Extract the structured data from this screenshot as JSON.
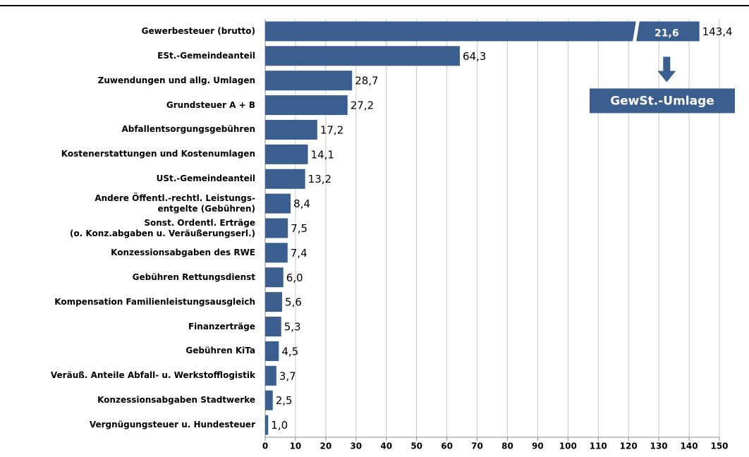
{
  "chart_data": {
    "type": "bar",
    "orientation": "horizontal",
    "categories": [
      "Gewerbesteuer (brutto)",
      "ESt.-Gemeindeanteil",
      "Zuwendungen und allg. Umlagen",
      "Grundsteuer A + B",
      "Abfallentsorgungsgebühren",
      "Kostenerstattungen und Kostenumlagen",
      "USt.-Gemeindeanteil",
      "Andere Öffentl.-rechtl. Leistungs-\nentgelte (Gebühren)",
      "Sonst. Ordentl. Erträge\n(o. Konz.abgaben u. Veräußerungserl.)",
      "Konzessionsabgaben des RWE",
      "Gebühren Rettungsdienst",
      "Kompensation Familienleistungsausgleich",
      "Finanzerträge",
      "Gebühren KiTa",
      "Veräuß. Anteile Abfall- u. Werkstofflogistik",
      "Konzessionsabgaben Stadtwerke",
      "Vergnügungsteuer u. Hundesteuer"
    ],
    "values": [
      143.4,
      64.3,
      28.7,
      27.2,
      17.2,
      14.1,
      13.2,
      8.4,
      7.5,
      7.4,
      6.0,
      5.6,
      5.3,
      4.5,
      3.7,
      2.5,
      1.0
    ],
    "value_labels": [
      "143,4",
      "64,3",
      "28,7",
      "27,2",
      "17,2",
      "14,1",
      "13,2",
      "8,4",
      "7,5",
      "7,4",
      "6,0",
      "5,6",
      "5,3",
      "4,5",
      "3,7",
      "2,5",
      "1,0"
    ],
    "color": "#3a5f8f",
    "xlim": [
      0,
      150
    ],
    "xticks": [
      0,
      10,
      20,
      30,
      40,
      50,
      60,
      70,
      80,
      90,
      100,
      110,
      120,
      130,
      140,
      150
    ],
    "grid": true,
    "annotation": {
      "label": "GewSt.-Umlage",
      "value": 21.6,
      "value_label": "21,6"
    }
  }
}
